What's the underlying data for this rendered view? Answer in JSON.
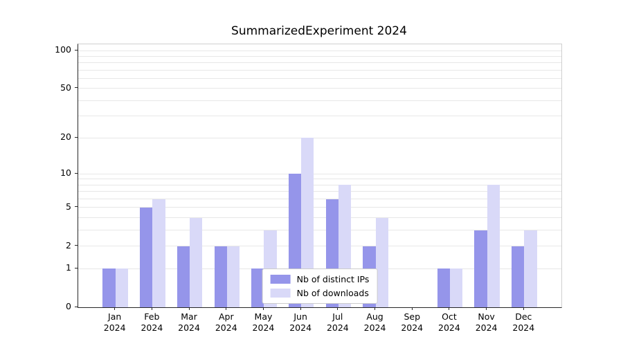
{
  "chart_data": {
    "type": "bar",
    "title": "SummarizedExperiment 2024",
    "year": "2024",
    "months": [
      "Jan",
      "Feb",
      "Mar",
      "Apr",
      "May",
      "Jun",
      "Jul",
      "Aug",
      "Sep",
      "Oct",
      "Nov",
      "Dec"
    ],
    "series": [
      {
        "name": "Nb of distinct IPs",
        "color": "#9595ea",
        "values": [
          1,
          5,
          2,
          2,
          1,
          10,
          6,
          2,
          0,
          1,
          3,
          2
        ]
      },
      {
        "name": "Nb of downloads",
        "color": "#d9d9f8",
        "values": [
          1,
          6,
          4,
          2,
          3,
          20,
          8,
          4,
          0,
          1,
          8,
          3
        ]
      }
    ],
    "y_ticks": [
      0,
      1,
      2,
      5,
      10,
      20,
      50,
      100
    ],
    "y_minor_gridlines": [
      1,
      2,
      3,
      4,
      5,
      6,
      7,
      8,
      9,
      10,
      20,
      30,
      40,
      50,
      60,
      70,
      80,
      90,
      100
    ],
    "y_scale": "log10(1+x)",
    "y_max": 112,
    "grid": true,
    "legend_position": "lower center inside"
  },
  "colors": {
    "grid": "#e7e7e7",
    "axis": "#262626",
    "spine_light": "#cfcfcf",
    "background": "#ffffff"
  }
}
